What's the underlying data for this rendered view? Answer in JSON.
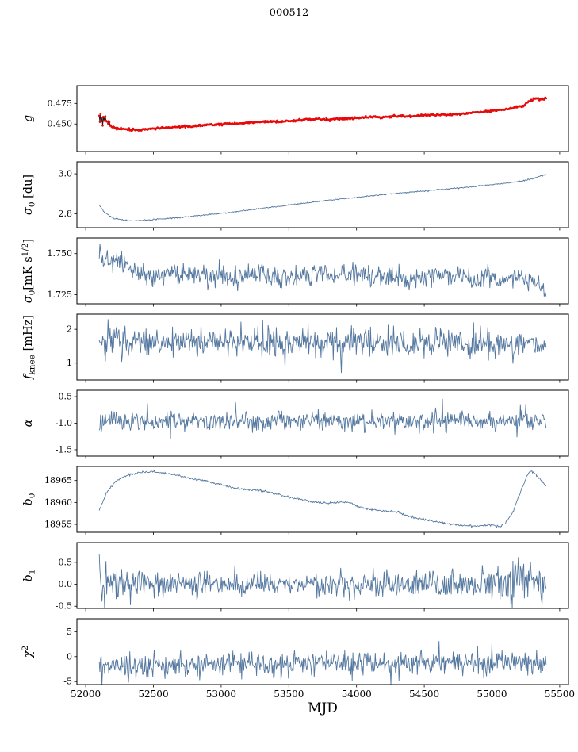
{
  "chart_data": {
    "type": "line",
    "title": "000512",
    "xlabel": "MJD",
    "xlim": [
      51935,
      55565
    ],
    "xticks": [
      52000,
      52500,
      53000,
      53500,
      54000,
      54500,
      55000,
      55500
    ],
    "x_data_range": [
      52100,
      55400
    ],
    "n_points": 660,
    "axis_color": "#000000",
    "line_color": "#53779f",
    "marker_color": "#e60b0b",
    "grid": false,
    "legend": "none",
    "panels": [
      {
        "name": "g",
        "label": [
          {
            "text": "g",
            "italic": true
          }
        ],
        "ylim": [
          0.4165,
          0.4965
        ],
        "yticks": [
          {
            "v": 0.45,
            "label": "0.450"
          },
          {
            "v": 0.475,
            "label": "0.475"
          }
        ],
        "seed": 3,
        "style": {
          "line": "#1a1a1a",
          "marker": "#e60b0b"
        },
        "noise": [
          [
            52100,
            0.0045
          ],
          [
            52130,
            0.0028
          ],
          [
            52170,
            0.0014
          ],
          [
            52240,
            0.0008
          ],
          [
            52400,
            0.0006
          ],
          [
            55300,
            0.0006
          ],
          [
            55400,
            0.0008
          ]
        ],
        "anchors": [
          [
            52100,
            0.463
          ],
          [
            52118,
            0.4525
          ],
          [
            52140,
            0.4558
          ],
          [
            52170,
            0.4498
          ],
          [
            52200,
            0.4465
          ],
          [
            52250,
            0.4442
          ],
          [
            52320,
            0.4428
          ],
          [
            52400,
            0.4431
          ],
          [
            52500,
            0.4444
          ],
          [
            52600,
            0.4456
          ],
          [
            52700,
            0.4466
          ],
          [
            52800,
            0.4477
          ],
          [
            52900,
            0.4487
          ],
          [
            53000,
            0.4498
          ],
          [
            53060,
            0.4506
          ],
          [
            53120,
            0.4502
          ],
          [
            53200,
            0.4515
          ],
          [
            53280,
            0.4526
          ],
          [
            53350,
            0.4531
          ],
          [
            53420,
            0.4526
          ],
          [
            53500,
            0.4533
          ],
          [
            53570,
            0.4546
          ],
          [
            53650,
            0.4555
          ],
          [
            53720,
            0.4559
          ],
          [
            53800,
            0.4553
          ],
          [
            53880,
            0.4563
          ],
          [
            53950,
            0.4569
          ],
          [
            54020,
            0.4576
          ],
          [
            54100,
            0.4586
          ],
          [
            54180,
            0.4581
          ],
          [
            54250,
            0.4589
          ],
          [
            54330,
            0.4596
          ],
          [
            54400,
            0.4591
          ],
          [
            54480,
            0.4605
          ],
          [
            54560,
            0.4613
          ],
          [
            54640,
            0.4611
          ],
          [
            54720,
            0.4619
          ],
          [
            54800,
            0.4629
          ],
          [
            54880,
            0.4639
          ],
          [
            54950,
            0.465
          ],
          [
            55000,
            0.466
          ],
          [
            55050,
            0.4668
          ],
          [
            55100,
            0.468
          ],
          [
            55150,
            0.4692
          ],
          [
            55200,
            0.471
          ],
          [
            55240,
            0.4725
          ],
          [
            55270,
            0.4775
          ],
          [
            55300,
            0.48
          ],
          [
            55330,
            0.4812
          ],
          [
            55360,
            0.4798
          ],
          [
            55400,
            0.481
          ]
        ]
      },
      {
        "name": "sigma0-du",
        "label": [
          {
            "text": "σ",
            "italic": true
          },
          {
            "text": "0",
            "pos": "sub"
          },
          {
            "text": " [du]"
          }
        ],
        "ylim": [
          2.73,
          3.06
        ],
        "yticks": [
          {
            "v": 2.8,
            "label": "2.8"
          },
          {
            "v": 3.0,
            "label": "3.0"
          }
        ],
        "seed": 7,
        "style": {
          "line": "#53779f"
        },
        "noise": 0.0015,
        "anchors": [
          [
            52100,
            2.845
          ],
          [
            52140,
            2.805
          ],
          [
            52200,
            2.778
          ],
          [
            52280,
            2.767
          ],
          [
            52360,
            2.764
          ],
          [
            52450,
            2.768
          ],
          [
            52550,
            2.773
          ],
          [
            52700,
            2.781
          ],
          [
            52850,
            2.791
          ],
          [
            53000,
            2.802
          ],
          [
            53150,
            2.814
          ],
          [
            53300,
            2.827
          ],
          [
            53450,
            2.839
          ],
          [
            53600,
            2.852
          ],
          [
            53750,
            2.864
          ],
          [
            53900,
            2.875
          ],
          [
            54050,
            2.886
          ],
          [
            54200,
            2.896
          ],
          [
            54350,
            2.905
          ],
          [
            54500,
            2.914
          ],
          [
            54650,
            2.923
          ],
          [
            54800,
            2.932
          ],
          [
            54950,
            2.942
          ],
          [
            55100,
            2.953
          ],
          [
            55200,
            2.962
          ],
          [
            55300,
            2.975
          ],
          [
            55400,
            2.998
          ]
        ]
      },
      {
        "name": "sigma0-mks",
        "label": [
          {
            "text": "σ",
            "italic": true
          },
          {
            "text": "0",
            "pos": "sub"
          },
          {
            "text": "[mK s"
          },
          {
            "text": "1/2",
            "pos": "sup"
          },
          {
            "text": "]"
          }
        ],
        "ylim": [
          1.7195,
          1.7595
        ],
        "yticks": [
          {
            "v": 1.725,
            "label": "1.725"
          },
          {
            "v": 1.75,
            "label": "1.750"
          }
        ],
        "seed": 13,
        "style": {
          "line": "#53779f"
        },
        "noise": 0.0033,
        "anchors": [
          [
            52100,
            1.756
          ],
          [
            52130,
            1.748
          ],
          [
            52180,
            1.7445
          ],
          [
            52260,
            1.7455
          ],
          [
            52340,
            1.7405
          ],
          [
            52420,
            1.737
          ],
          [
            52500,
            1.736
          ],
          [
            52600,
            1.7378
          ],
          [
            52700,
            1.7368
          ],
          [
            52800,
            1.7382
          ],
          [
            52900,
            1.736
          ],
          [
            53000,
            1.7378
          ],
          [
            53100,
            1.7352
          ],
          [
            53200,
            1.7368
          ],
          [
            53300,
            1.739
          ],
          [
            53400,
            1.7362
          ],
          [
            53500,
            1.735
          ],
          [
            53600,
            1.7355
          ],
          [
            53700,
            1.7385
          ],
          [
            53800,
            1.7362
          ],
          [
            53900,
            1.7372
          ],
          [
            54000,
            1.7392
          ],
          [
            54100,
            1.737
          ],
          [
            54200,
            1.7362
          ],
          [
            54300,
            1.7358
          ],
          [
            54400,
            1.735
          ],
          [
            54500,
            1.7352
          ],
          [
            54600,
            1.7375
          ],
          [
            54700,
            1.7362
          ],
          [
            54800,
            1.7355
          ],
          [
            54900,
            1.7332
          ],
          [
            55000,
            1.736
          ],
          [
            55100,
            1.7342
          ],
          [
            55150,
            1.736
          ],
          [
            55200,
            1.7365
          ],
          [
            55250,
            1.7338
          ],
          [
            55300,
            1.7332
          ],
          [
            55340,
            1.7305
          ],
          [
            55370,
            1.729
          ],
          [
            55400,
            1.724
          ]
        ]
      },
      {
        "name": "fknee",
        "label": [
          {
            "text": "f",
            "italic": true
          },
          {
            "text": "knee",
            "pos": "sub"
          },
          {
            "text": " [mHz]"
          }
        ],
        "ylim": [
          0.5,
          2.45
        ],
        "yticks": [
          {
            "v": 1,
            "label": "1"
          },
          {
            "v": 2,
            "label": "2"
          }
        ],
        "seed": 21,
        "style": {
          "line": "#53779f"
        },
        "noise": 0.21,
        "spike": {
          "prob": 0.015,
          "scale": 0.45
        },
        "anchors": [
          [
            52100,
            1.7
          ],
          [
            52250,
            1.64
          ],
          [
            52500,
            1.6
          ],
          [
            53000,
            1.63
          ],
          [
            53500,
            1.6
          ],
          [
            54000,
            1.62
          ],
          [
            54500,
            1.6
          ],
          [
            55000,
            1.62
          ],
          [
            55250,
            1.63
          ],
          [
            55400,
            1.52
          ]
        ]
      },
      {
        "name": "alpha",
        "label": [
          {
            "text": "α",
            "italic": true
          }
        ],
        "ylim": [
          -1.62,
          -0.38
        ],
        "yticks": [
          {
            "v": -1.5,
            "label": "-1.5"
          },
          {
            "v": -1.0,
            "label": "-1.0"
          },
          {
            "v": -0.5,
            "label": "-0.5"
          }
        ],
        "seed": 29,
        "style": {
          "line": "#53779f"
        },
        "noise": 0.09,
        "spike": {
          "prob": 0.02,
          "scale": 0.17
        },
        "anchors": [
          [
            52100,
            -0.96
          ],
          [
            53000,
            -0.97
          ],
          [
            54000,
            -0.965
          ],
          [
            55000,
            -0.96
          ],
          [
            55400,
            -0.97
          ]
        ]
      },
      {
        "name": "b0",
        "label": [
          {
            "text": "b",
            "italic": true
          },
          {
            "text": "0",
            "pos": "sub"
          }
        ],
        "ylim": [
          18953.2,
          18968.2
        ],
        "yticks": [
          {
            "v": 18955,
            "label": "18955"
          },
          {
            "v": 18960,
            "label": "18960"
          },
          {
            "v": 18965,
            "label": "18965"
          }
        ],
        "seed": 35,
        "style": {
          "line": "#53779f"
        },
        "noise": 0.12,
        "anchors": [
          [
            52100,
            18958.2
          ],
          [
            52150,
            18962.0
          ],
          [
            52220,
            18964.8
          ],
          [
            52300,
            18966.2
          ],
          [
            52400,
            18966.8
          ],
          [
            52500,
            18967.0
          ],
          [
            52600,
            18966.6
          ],
          [
            52700,
            18966.0
          ],
          [
            52800,
            18965.3
          ],
          [
            52900,
            18964.8
          ],
          [
            53000,
            18964.0
          ],
          [
            53100,
            18963.3
          ],
          [
            53200,
            18962.9
          ],
          [
            53300,
            18962.7
          ],
          [
            53400,
            18962.0
          ],
          [
            53500,
            18961.2
          ],
          [
            53600,
            18960.6
          ],
          [
            53700,
            18960.0
          ],
          [
            53800,
            18959.8
          ],
          [
            53900,
            18960.1
          ],
          [
            53950,
            18959.9
          ],
          [
            54000,
            18959.2
          ],
          [
            54100,
            18958.4
          ],
          [
            54200,
            18958.1
          ],
          [
            54300,
            18957.8
          ],
          [
            54350,
            18957.2
          ],
          [
            54450,
            18956.4
          ],
          [
            54550,
            18955.8
          ],
          [
            54650,
            18955.2
          ],
          [
            54750,
            18954.9
          ],
          [
            54850,
            18954.6
          ],
          [
            54950,
            18954.8
          ],
          [
            55000,
            18954.9
          ],
          [
            55050,
            18954.5
          ],
          [
            55100,
            18955.3
          ],
          [
            55150,
            18957.5
          ],
          [
            55200,
            18961.5
          ],
          [
            55250,
            18965.5
          ],
          [
            55280,
            18967.2
          ],
          [
            55310,
            18966.8
          ],
          [
            55350,
            18965.5
          ],
          [
            55400,
            18963.8
          ]
        ]
      },
      {
        "name": "b1",
        "label": [
          {
            "text": "b",
            "italic": true
          },
          {
            "text": "1",
            "pos": "sub"
          }
        ],
        "ylim": [
          -0.55,
          0.95
        ],
        "yticks": [
          {
            "v": -0.5,
            "label": "-0.5"
          },
          {
            "v": 0.0,
            "label": "0.0"
          },
          {
            "v": 0.5,
            "label": "0.5"
          }
        ],
        "seed": 41,
        "style": {
          "line": "#53779f"
        },
        "noise": [
          [
            52100,
            0.4
          ],
          [
            52160,
            0.28
          ],
          [
            52240,
            0.17
          ],
          [
            52400,
            0.15
          ],
          [
            53500,
            0.15
          ],
          [
            54800,
            0.16
          ],
          [
            55080,
            0.18
          ],
          [
            55160,
            0.38
          ],
          [
            55240,
            0.3
          ],
          [
            55320,
            0.2
          ],
          [
            55400,
            0.16
          ]
        ],
        "anchors": [
          [
            52100,
            0.18
          ],
          [
            52140,
            0.05
          ],
          [
            52200,
            0.02
          ],
          [
            52400,
            0.0
          ],
          [
            53000,
            0.0
          ],
          [
            54000,
            0.01
          ],
          [
            55000,
            0.0
          ],
          [
            55200,
            0.05
          ],
          [
            55400,
            -0.08
          ]
        ]
      },
      {
        "name": "chi2",
        "label": [
          {
            "text": "χ",
            "italic": true
          },
          {
            "text": "2",
            "pos": "sup"
          }
        ],
        "ylim": [
          -5.6,
          7.6
        ],
        "yticks": [
          {
            "v": -5,
            "label": "-5"
          },
          {
            "v": 0,
            "label": "0"
          },
          {
            "v": 5,
            "label": "5"
          }
        ],
        "seed": 47,
        "style": {
          "line": "#53779f"
        },
        "noise": 1.2,
        "spike": {
          "prob": 0.02,
          "scale": 2.4
        },
        "anchors": [
          [
            52100,
            -0.9
          ],
          [
            52200,
            -1.8
          ],
          [
            52400,
            -1.7
          ],
          [
            52700,
            -1.6
          ],
          [
            53000,
            -1.5
          ],
          [
            53500,
            -1.45
          ],
          [
            54000,
            -1.35
          ],
          [
            54500,
            -1.3
          ],
          [
            55000,
            -1.2
          ],
          [
            55400,
            -1.1
          ]
        ]
      }
    ]
  }
}
